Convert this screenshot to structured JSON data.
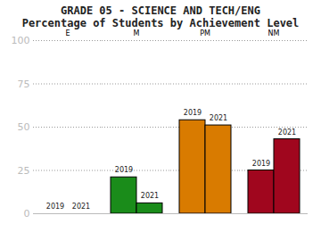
{
  "chart_data": {
    "type": "bar",
    "title": "GRADE 05 - SCIENCE AND TECH/ENG",
    "subtitle": "Percentage of Students by Achievement Level",
    "categories": [
      "E",
      "M",
      "PM",
      "NM"
    ],
    "series": [
      {
        "name": "2019",
        "values": [
          0,
          21,
          54,
          25
        ]
      },
      {
        "name": "2021",
        "values": [
          0,
          6,
          51,
          43
        ]
      }
    ],
    "colors": [
      "#1f4e9c",
      "#1a8c1a",
      "#d97b00",
      "#a0061e"
    ],
    "ylim": [
      0,
      100
    ],
    "yticks": [
      0,
      25,
      50,
      75,
      100
    ],
    "grid": true
  }
}
